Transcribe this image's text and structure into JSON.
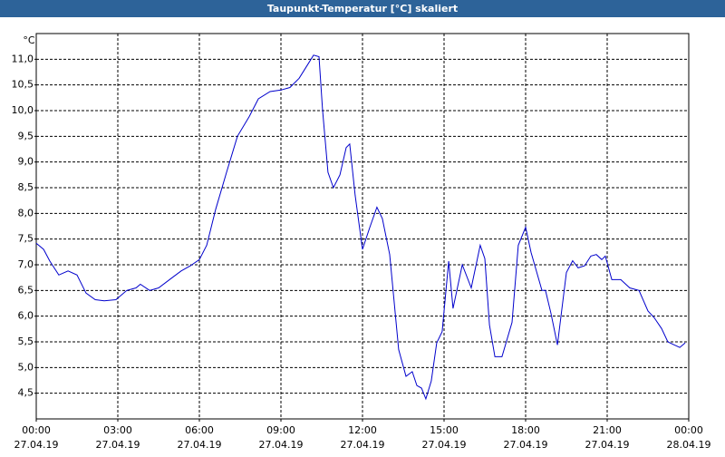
{
  "chart_data": {
    "type": "line",
    "title": "Taupunkt-Temperatur [°C] skaliert",
    "y_unit": "°C",
    "xlim": [
      0,
      24
    ],
    "xticks": [
      {
        "value": 0,
        "label": "00:00"
      },
      {
        "value": 3,
        "label": "03:00"
      },
      {
        "value": 6,
        "label": "06:00"
      },
      {
        "value": 9,
        "label": "09:00"
      },
      {
        "value": 12,
        "label": "12:00"
      },
      {
        "value": 15,
        "label": "15:00"
      },
      {
        "value": 18,
        "label": "18:00"
      },
      {
        "value": 21,
        "label": "21:00"
      },
      {
        "value": 24,
        "label": "00:00"
      }
    ],
    "xtick_dates": [
      "27.04.19",
      "27.04.19",
      "27.04.19",
      "27.04.19",
      "27.04.19",
      "27.04.19",
      "27.04.19",
      "27.04.19",
      "28.04.19"
    ],
    "ylim": [
      4.0,
      11.5
    ],
    "yticks": [
      {
        "value": 4.5,
        "label": "4,5"
      },
      {
        "value": 5,
        "label": "5,0"
      },
      {
        "value": 5.5,
        "label": "5,5"
      },
      {
        "value": 6,
        "label": "6,0"
      },
      {
        "value": 6.5,
        "label": "6,5"
      },
      {
        "value": 7,
        "label": "7,0"
      },
      {
        "value": 7.5,
        "label": "7,5"
      },
      {
        "value": 8,
        "label": "8,0"
      },
      {
        "value": 8.5,
        "label": "8,5"
      },
      {
        "value": 9,
        "label": "9,0"
      },
      {
        "value": 9.5,
        "label": "9,5"
      },
      {
        "value": 10,
        "label": "10,0"
      },
      {
        "value": 10.5,
        "label": "10,5"
      },
      {
        "value": 11,
        "label": "11,0"
      }
    ],
    "grid": true,
    "series": [
      {
        "color": "#0000cc",
        "x": [
          0,
          0.27,
          0.5,
          0.83,
          1.17,
          1.5,
          1.83,
          2.17,
          2.5,
          2.93,
          3.33,
          3.67,
          3.83,
          4.17,
          4.5,
          5,
          5.33,
          5.67,
          6,
          6.27,
          6.6,
          7,
          7.4,
          7.83,
          8.17,
          8.6,
          9,
          9.33,
          9.67,
          9.93,
          10.2,
          10.4,
          10.53,
          10.73,
          10.93,
          11.17,
          11.4,
          11.53,
          11.73,
          12,
          12.27,
          12.53,
          12.73,
          13,
          13.33,
          13.6,
          13.83,
          14,
          14.17,
          14.33,
          14.53,
          14.73,
          14.93,
          15.17,
          15.33,
          15.67,
          16,
          16.33,
          16.5,
          16.67,
          16.87,
          17.13,
          17.5,
          17.73,
          18,
          18.2,
          18.6,
          18.73,
          18.93,
          19.17,
          19.5,
          19.73,
          19.93,
          20.17,
          20.4,
          20.6,
          20.8,
          20.93,
          21.17,
          21.5,
          21.83,
          22.17,
          22.5,
          22.73,
          23,
          23.23,
          23.47,
          23.67,
          23.87
        ],
        "values": [
          7.42,
          7.3,
          7.07,
          6.8,
          6.88,
          6.8,
          6.45,
          6.32,
          6.3,
          6.32,
          6.5,
          6.55,
          6.62,
          6.5,
          6.55,
          6.75,
          6.88,
          6.98,
          7.1,
          7.38,
          8.08,
          8.8,
          9.5,
          9.88,
          10.23,
          10.37,
          10.4,
          10.45,
          10.63,
          10.85,
          11.08,
          11.05,
          10.02,
          8.8,
          8.5,
          8.75,
          9.28,
          9.35,
          8.35,
          7.3,
          7.73,
          8.12,
          7.9,
          7.2,
          5.35,
          4.83,
          4.92,
          4.65,
          4.6,
          4.39,
          4.74,
          5.48,
          5.7,
          7.07,
          6.15,
          7.0,
          6.55,
          7.38,
          7.12,
          5.83,
          5.21,
          5.21,
          5.88,
          7.38,
          7.73,
          7.24,
          6.5,
          6.5,
          6.06,
          5.44,
          6.85,
          7.08,
          6.94,
          6.98,
          7.17,
          7.2,
          7.1,
          7.17,
          6.71,
          6.71,
          6.55,
          6.5,
          6.1,
          5.97,
          5.76,
          5.5,
          5.44,
          5.39,
          5.48
        ]
      }
    ]
  }
}
